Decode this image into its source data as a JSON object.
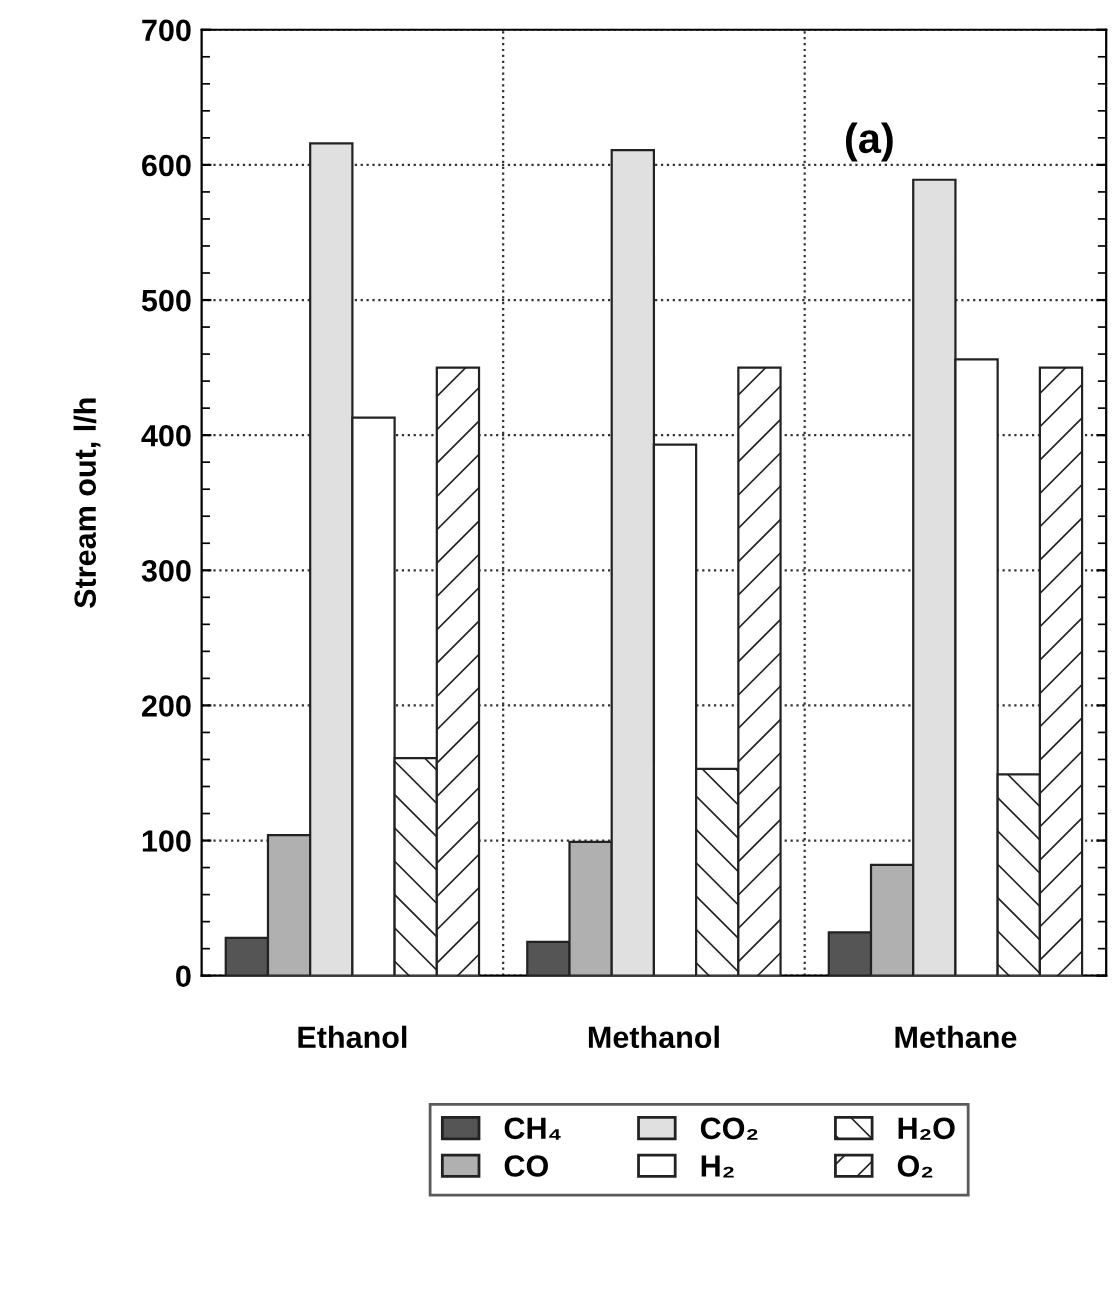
{
  "chart_data": {
    "type": "bar",
    "ylabel": "Stream out, l/h",
    "categories": [
      "Ethanol",
      "Methanol",
      "Methane"
    ],
    "series": [
      {
        "name": "CH₄",
        "color": "#555555",
        "values": [
          28,
          25,
          32
        ]
      },
      {
        "name": "CO",
        "color": "#b0b0b0",
        "values": [
          104,
          99,
          82
        ]
      },
      {
        "name": "CO₂",
        "color": "#e0e0e0",
        "values": [
          616,
          611,
          589
        ]
      },
      {
        "name": "H₂",
        "color": "#ffffff",
        "values": [
          413,
          393,
          456
        ]
      },
      {
        "name": "H₂O",
        "color": "#222222",
        "values": [
          161,
          153,
          149
        ]
      },
      {
        "name": "O₂",
        "color": "#222222",
        "values": [
          450,
          450,
          450
        ]
      }
    ],
    "ylim": [
      0,
      700
    ],
    "yticks": [
      0,
      100,
      200,
      300,
      400,
      500,
      600,
      700
    ],
    "grid": true,
    "legend": "bottom",
    "annotations": [
      "(a)"
    ]
  }
}
